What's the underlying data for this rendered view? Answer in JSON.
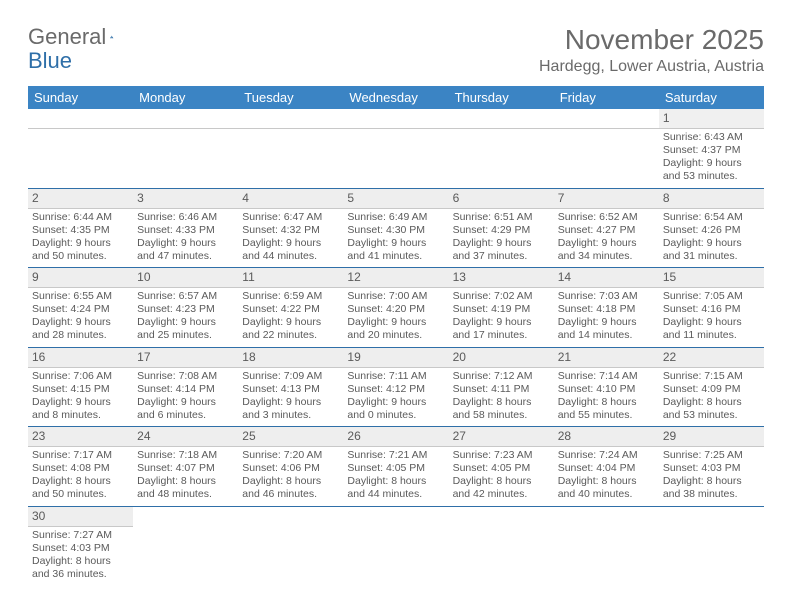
{
  "logo": {
    "text_general": "General",
    "text_blue": "Blue"
  },
  "header": {
    "month_title": "November 2025",
    "location": "Hardegg, Lower Austria, Austria"
  },
  "colors": {
    "header_bg": "#3b84c4",
    "header_text": "#ffffff",
    "rule": "#2f6fa8",
    "daynum_bg": "#eeeeee",
    "text": "#5a5a5a"
  },
  "daynames": [
    "Sunday",
    "Monday",
    "Tuesday",
    "Wednesday",
    "Thursday",
    "Friday",
    "Saturday"
  ],
  "weeks": [
    {
      "nums": [
        "",
        "",
        "",
        "",
        "",
        "",
        "1"
      ],
      "cells": [
        null,
        null,
        null,
        null,
        null,
        null,
        {
          "sunrise": "Sunrise: 6:43 AM",
          "sunset": "Sunset: 4:37 PM",
          "day1": "Daylight: 9 hours",
          "day2": "and 53 minutes."
        }
      ]
    },
    {
      "nums": [
        "2",
        "3",
        "4",
        "5",
        "6",
        "7",
        "8"
      ],
      "cells": [
        {
          "sunrise": "Sunrise: 6:44 AM",
          "sunset": "Sunset: 4:35 PM",
          "day1": "Daylight: 9 hours",
          "day2": "and 50 minutes."
        },
        {
          "sunrise": "Sunrise: 6:46 AM",
          "sunset": "Sunset: 4:33 PM",
          "day1": "Daylight: 9 hours",
          "day2": "and 47 minutes."
        },
        {
          "sunrise": "Sunrise: 6:47 AM",
          "sunset": "Sunset: 4:32 PM",
          "day1": "Daylight: 9 hours",
          "day2": "and 44 minutes."
        },
        {
          "sunrise": "Sunrise: 6:49 AM",
          "sunset": "Sunset: 4:30 PM",
          "day1": "Daylight: 9 hours",
          "day2": "and 41 minutes."
        },
        {
          "sunrise": "Sunrise: 6:51 AM",
          "sunset": "Sunset: 4:29 PM",
          "day1": "Daylight: 9 hours",
          "day2": "and 37 minutes."
        },
        {
          "sunrise": "Sunrise: 6:52 AM",
          "sunset": "Sunset: 4:27 PM",
          "day1": "Daylight: 9 hours",
          "day2": "and 34 minutes."
        },
        {
          "sunrise": "Sunrise: 6:54 AM",
          "sunset": "Sunset: 4:26 PM",
          "day1": "Daylight: 9 hours",
          "day2": "and 31 minutes."
        }
      ]
    },
    {
      "nums": [
        "9",
        "10",
        "11",
        "12",
        "13",
        "14",
        "15"
      ],
      "cells": [
        {
          "sunrise": "Sunrise: 6:55 AM",
          "sunset": "Sunset: 4:24 PM",
          "day1": "Daylight: 9 hours",
          "day2": "and 28 minutes."
        },
        {
          "sunrise": "Sunrise: 6:57 AM",
          "sunset": "Sunset: 4:23 PM",
          "day1": "Daylight: 9 hours",
          "day2": "and 25 minutes."
        },
        {
          "sunrise": "Sunrise: 6:59 AM",
          "sunset": "Sunset: 4:22 PM",
          "day1": "Daylight: 9 hours",
          "day2": "and 22 minutes."
        },
        {
          "sunrise": "Sunrise: 7:00 AM",
          "sunset": "Sunset: 4:20 PM",
          "day1": "Daylight: 9 hours",
          "day2": "and 20 minutes."
        },
        {
          "sunrise": "Sunrise: 7:02 AM",
          "sunset": "Sunset: 4:19 PM",
          "day1": "Daylight: 9 hours",
          "day2": "and 17 minutes."
        },
        {
          "sunrise": "Sunrise: 7:03 AM",
          "sunset": "Sunset: 4:18 PM",
          "day1": "Daylight: 9 hours",
          "day2": "and 14 minutes."
        },
        {
          "sunrise": "Sunrise: 7:05 AM",
          "sunset": "Sunset: 4:16 PM",
          "day1": "Daylight: 9 hours",
          "day2": "and 11 minutes."
        }
      ]
    },
    {
      "nums": [
        "16",
        "17",
        "18",
        "19",
        "20",
        "21",
        "22"
      ],
      "cells": [
        {
          "sunrise": "Sunrise: 7:06 AM",
          "sunset": "Sunset: 4:15 PM",
          "day1": "Daylight: 9 hours",
          "day2": "and 8 minutes."
        },
        {
          "sunrise": "Sunrise: 7:08 AM",
          "sunset": "Sunset: 4:14 PM",
          "day1": "Daylight: 9 hours",
          "day2": "and 6 minutes."
        },
        {
          "sunrise": "Sunrise: 7:09 AM",
          "sunset": "Sunset: 4:13 PM",
          "day1": "Daylight: 9 hours",
          "day2": "and 3 minutes."
        },
        {
          "sunrise": "Sunrise: 7:11 AM",
          "sunset": "Sunset: 4:12 PM",
          "day1": "Daylight: 9 hours",
          "day2": "and 0 minutes."
        },
        {
          "sunrise": "Sunrise: 7:12 AM",
          "sunset": "Sunset: 4:11 PM",
          "day1": "Daylight: 8 hours",
          "day2": "and 58 minutes."
        },
        {
          "sunrise": "Sunrise: 7:14 AM",
          "sunset": "Sunset: 4:10 PM",
          "day1": "Daylight: 8 hours",
          "day2": "and 55 minutes."
        },
        {
          "sunrise": "Sunrise: 7:15 AM",
          "sunset": "Sunset: 4:09 PM",
          "day1": "Daylight: 8 hours",
          "day2": "and 53 minutes."
        }
      ]
    },
    {
      "nums": [
        "23",
        "24",
        "25",
        "26",
        "27",
        "28",
        "29"
      ],
      "cells": [
        {
          "sunrise": "Sunrise: 7:17 AM",
          "sunset": "Sunset: 4:08 PM",
          "day1": "Daylight: 8 hours",
          "day2": "and 50 minutes."
        },
        {
          "sunrise": "Sunrise: 7:18 AM",
          "sunset": "Sunset: 4:07 PM",
          "day1": "Daylight: 8 hours",
          "day2": "and 48 minutes."
        },
        {
          "sunrise": "Sunrise: 7:20 AM",
          "sunset": "Sunset: 4:06 PM",
          "day1": "Daylight: 8 hours",
          "day2": "and 46 minutes."
        },
        {
          "sunrise": "Sunrise: 7:21 AM",
          "sunset": "Sunset: 4:05 PM",
          "day1": "Daylight: 8 hours",
          "day2": "and 44 minutes."
        },
        {
          "sunrise": "Sunrise: 7:23 AM",
          "sunset": "Sunset: 4:05 PM",
          "day1": "Daylight: 8 hours",
          "day2": "and 42 minutes."
        },
        {
          "sunrise": "Sunrise: 7:24 AM",
          "sunset": "Sunset: 4:04 PM",
          "day1": "Daylight: 8 hours",
          "day2": "and 40 minutes."
        },
        {
          "sunrise": "Sunrise: 7:25 AM",
          "sunset": "Sunset: 4:03 PM",
          "day1": "Daylight: 8 hours",
          "day2": "and 38 minutes."
        }
      ]
    },
    {
      "nums": [
        "30",
        "",
        "",
        "",
        "",
        "",
        ""
      ],
      "cells": [
        {
          "sunrise": "Sunrise: 7:27 AM",
          "sunset": "Sunset: 4:03 PM",
          "day1": "Daylight: 8 hours",
          "day2": "and 36 minutes."
        },
        null,
        null,
        null,
        null,
        null,
        null
      ]
    }
  ]
}
